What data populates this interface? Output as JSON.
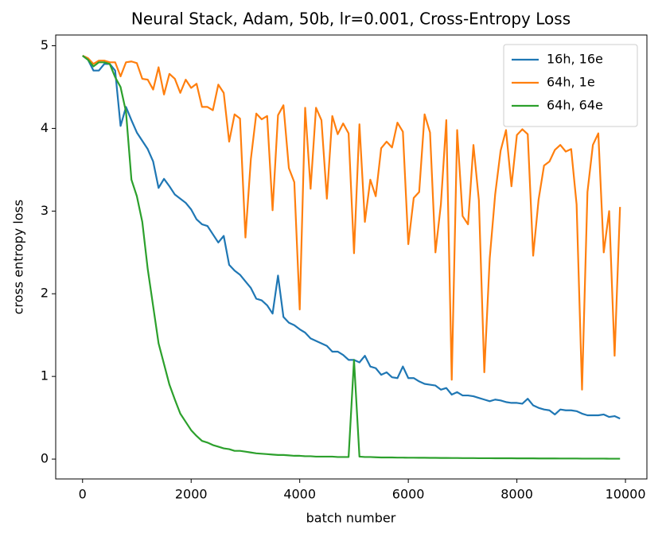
{
  "chart_data": {
    "type": "line",
    "title": "Neural Stack, Adam, 50b, lr=0.001, Cross-Entropy Loss",
    "x_label": "batch number",
    "y_label": "cross entropy loss",
    "x": [
      0,
      100,
      200,
      300,
      400,
      500,
      600,
      700,
      800,
      900,
      1000,
      1100,
      1200,
      1300,
      1400,
      1500,
      1600,
      1700,
      1800,
      1900,
      2000,
      2100,
      2200,
      2300,
      2400,
      2500,
      2600,
      2700,
      2800,
      2900,
      3000,
      3100,
      3200,
      3300,
      3400,
      3500,
      3600,
      3700,
      3800,
      3900,
      4000,
      4100,
      4200,
      4300,
      4400,
      4500,
      4600,
      4700,
      4800,
      4900,
      5000,
      5100,
      5200,
      5300,
      5400,
      5500,
      5600,
      5700,
      5800,
      5900,
      6000,
      6100,
      6200,
      6300,
      6400,
      6500,
      6600,
      6700,
      6800,
      6900,
      7000,
      7100,
      7200,
      7300,
      7400,
      7500,
      7600,
      7700,
      7800,
      7900,
      8000,
      8100,
      8200,
      8300,
      8400,
      8500,
      8600,
      8700,
      8800,
      8900,
      9000,
      9100,
      9200,
      9300,
      9400,
      9500,
      9600,
      9700,
      9800,
      9900
    ],
    "series": [
      {
        "name": "16h, 16e",
        "color": "#1f77b4",
        "values": [
          4.88,
          4.83,
          4.7,
          4.7,
          4.78,
          4.78,
          4.7,
          4.03,
          4.26,
          4.1,
          3.95,
          3.85,
          3.75,
          3.6,
          3.28,
          3.39,
          3.3,
          3.2,
          3.15,
          3.1,
          3.02,
          2.9,
          2.84,
          2.82,
          2.72,
          2.62,
          2.7,
          2.35,
          2.28,
          2.23,
          2.15,
          2.07,
          1.94,
          1.92,
          1.86,
          1.76,
          2.22,
          1.72,
          1.65,
          1.62,
          1.57,
          1.53,
          1.46,
          1.43,
          1.4,
          1.37,
          1.3,
          1.3,
          1.26,
          1.2,
          1.2,
          1.17,
          1.25,
          1.12,
          1.1,
          1.02,
          1.05,
          0.99,
          0.98,
          1.12,
          0.98,
          0.98,
          0.94,
          0.91,
          0.9,
          0.89,
          0.84,
          0.86,
          0.78,
          0.81,
          0.77,
          0.77,
          0.76,
          0.74,
          0.72,
          0.7,
          0.72,
          0.71,
          0.69,
          0.68,
          0.68,
          0.67,
          0.73,
          0.65,
          0.62,
          0.6,
          0.59,
          0.54,
          0.6,
          0.59,
          0.59,
          0.58,
          0.55,
          0.53,
          0.53,
          0.53,
          0.54,
          0.51,
          0.52,
          0.49
        ]
      },
      {
        "name": "64h, 1e",
        "color": "#ff7f0e",
        "values": [
          4.88,
          4.85,
          4.78,
          4.82,
          4.82,
          4.8,
          4.8,
          4.63,
          4.8,
          4.81,
          4.79,
          4.6,
          4.59,
          4.47,
          4.74,
          4.41,
          4.66,
          4.6,
          4.43,
          4.59,
          4.49,
          4.54,
          4.26,
          4.26,
          4.22,
          4.53,
          4.43,
          3.84,
          4.17,
          4.12,
          2.68,
          3.63,
          4.18,
          4.11,
          4.15,
          3.01,
          4.16,
          4.28,
          3.52,
          3.35,
          1.81,
          4.25,
          3.27,
          4.25,
          4.1,
          3.15,
          4.15,
          3.93,
          4.06,
          3.94,
          2.49,
          4.05,
          2.87,
          3.38,
          3.18,
          3.76,
          3.84,
          3.77,
          4.07,
          3.96,
          2.6,
          3.16,
          3.23,
          4.17,
          3.95,
          2.5,
          3.08,
          4.1,
          0.96,
          3.98,
          2.94,
          2.84,
          3.8,
          3.13,
          1.05,
          2.43,
          3.2,
          3.73,
          3.98,
          3.3,
          3.92,
          3.99,
          3.93,
          2.46,
          3.14,
          3.55,
          3.6,
          3.74,
          3.8,
          3.72,
          3.75,
          3.08,
          0.84,
          3.23,
          3.8,
          3.94,
          2.5,
          3.0,
          1.25,
          3.05
        ]
      },
      {
        "name": "64h, 64e",
        "color": "#2ca02c",
        "values": [
          4.88,
          4.83,
          4.75,
          4.8,
          4.8,
          4.78,
          4.62,
          4.5,
          4.2,
          3.38,
          3.18,
          2.87,
          2.3,
          1.85,
          1.4,
          1.15,
          0.9,
          0.72,
          0.55,
          0.45,
          0.35,
          0.28,
          0.22,
          0.2,
          0.17,
          0.15,
          0.13,
          0.12,
          0.1,
          0.1,
          0.09,
          0.08,
          0.07,
          0.065,
          0.06,
          0.055,
          0.05,
          0.05,
          0.045,
          0.04,
          0.04,
          0.035,
          0.035,
          0.03,
          0.03,
          0.03,
          0.03,
          0.025,
          0.025,
          0.025,
          1.2,
          0.03,
          0.025,
          0.025,
          0.022,
          0.02,
          0.02,
          0.02,
          0.018,
          0.018,
          0.017,
          0.017,
          0.016,
          0.016,
          0.015,
          0.015,
          0.014,
          0.014,
          0.013,
          0.013,
          0.012,
          0.012,
          0.012,
          0.011,
          0.011,
          0.011,
          0.01,
          0.01,
          0.01,
          0.01,
          0.009,
          0.009,
          0.009,
          0.009,
          0.008,
          0.008,
          0.008,
          0.008,
          0.007,
          0.007,
          0.007,
          0.007,
          0.006,
          0.006,
          0.006,
          0.006,
          0.006,
          0.005,
          0.005,
          0.005
        ]
      }
    ],
    "xlim": [
      -495,
      10395
    ],
    "ylim": [
      -0.24,
      5.13
    ],
    "xticks": [
      0,
      2000,
      4000,
      6000,
      8000,
      10000
    ],
    "yticks": [
      0,
      1,
      2,
      3,
      4,
      5
    ],
    "legend": "upper right",
    "grid": false
  }
}
